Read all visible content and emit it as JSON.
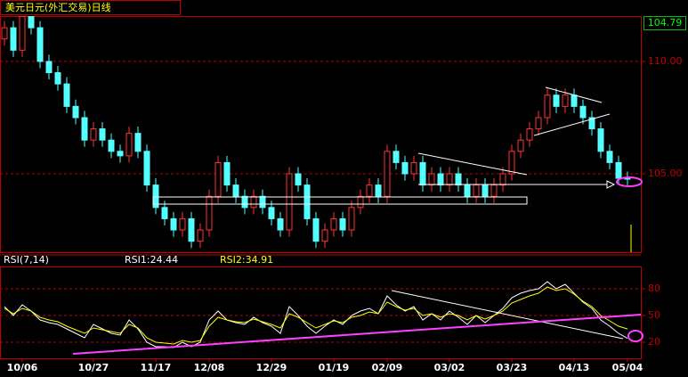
{
  "chart_data": [
    {
      "type": "candlestick",
      "title": "美元日元(外汇交易)日线",
      "categories": [
        null,
        null,
        "10/06",
        null,
        null,
        null,
        null,
        null,
        null,
        null,
        "10/27",
        null,
        null,
        null,
        null,
        null,
        null,
        "11/17",
        null,
        null,
        null,
        null,
        null,
        "12/08",
        null,
        null,
        null,
        null,
        null,
        null,
        "12/29",
        null,
        null,
        null,
        null,
        null,
        null,
        "01/19",
        null,
        null,
        null,
        null,
        null,
        "02/09",
        null,
        null,
        null,
        null,
        null,
        null,
        "03/02",
        null,
        null,
        null,
        null,
        null,
        null,
        "03/23",
        null,
        null,
        null,
        null,
        null,
        null,
        "04/13",
        null,
        null,
        null,
        null,
        null,
        "05/04"
      ],
      "open": [
        111,
        111.5,
        110.5,
        112,
        111.5,
        110,
        109.5,
        109,
        108,
        107.5,
        106.5,
        107,
        106.5,
        106,
        105.8,
        106.8,
        106,
        104.5,
        103.5,
        103,
        102.5,
        103,
        102,
        102.5,
        104,
        105.5,
        104.5,
        104,
        103.5,
        104,
        103.5,
        103,
        102.5,
        105,
        104.5,
        103,
        102,
        102.5,
        103,
        102.5,
        103.5,
        104,
        104.5,
        104,
        106,
        105.5,
        105,
        105.5,
        104.5,
        105,
        104.5,
        105,
        104.5,
        104,
        104.5,
        104,
        104.5,
        105,
        106,
        106.5,
        107,
        107.5,
        108.5,
        108,
        108.5,
        108,
        107.5,
        107,
        106,
        105.5,
        104.8
      ],
      "high": [
        111.8,
        111.8,
        112,
        112,
        111.8,
        110.3,
        109.8,
        109.3,
        108.3,
        107.8,
        107.3,
        107.3,
        106.8,
        106.3,
        107.1,
        107.1,
        106.3,
        104.8,
        103.8,
        103.3,
        103.3,
        103.3,
        102.8,
        104.3,
        105.8,
        105.8,
        104.8,
        104.3,
        104.3,
        104.3,
        103.8,
        103.3,
        105.3,
        105.3,
        104.8,
        103.3,
        102.8,
        103.3,
        103.3,
        103.8,
        104.3,
        104.8,
        104.8,
        106.3,
        106.3,
        105.8,
        105.8,
        105.8,
        105.3,
        105.3,
        105.3,
        105.3,
        104.8,
        104.8,
        104.8,
        104.8,
        105.3,
        106.3,
        106.8,
        107.3,
        107.8,
        108.8,
        108.8,
        108.8,
        108.8,
        108.3,
        107.8,
        107.3,
        106.3,
        105.8,
        105.1
      ],
      "low": [
        110.7,
        110.2,
        110.2,
        111.2,
        109.7,
        109.2,
        108.7,
        107.7,
        107.2,
        106.2,
        106.2,
        106.2,
        105.7,
        105.5,
        105.5,
        105.7,
        104.2,
        103.2,
        102.7,
        102.2,
        102.2,
        101.7,
        101.7,
        102.2,
        103.7,
        104.2,
        103.7,
        103.2,
        103.2,
        103.2,
        102.7,
        102.2,
        102.2,
        104.2,
        102.7,
        101.7,
        101.7,
        102.2,
        102.2,
        102.2,
        103.2,
        103.7,
        103.7,
        103.7,
        105.2,
        104.7,
        104.7,
        104.2,
        104.2,
        104.2,
        104.2,
        104.2,
        103.7,
        103.7,
        103.7,
        103.7,
        104.2,
        104.7,
        105.7,
        106.2,
        106.7,
        107.2,
        107.7,
        107.7,
        107.7,
        107.2,
        106.7,
        105.7,
        105.2,
        104.5,
        104.49
      ],
      "close": [
        111.5,
        110.5,
        112,
        111.5,
        110,
        109.5,
        109,
        108,
        107.5,
        106.5,
        107,
        106.5,
        106,
        105.8,
        106.8,
        106,
        104.5,
        103.5,
        103,
        102.5,
        103,
        102,
        102.5,
        104,
        105.5,
        104.5,
        104,
        103.5,
        104,
        103.5,
        103,
        102.5,
        105,
        104.5,
        103,
        102,
        102.5,
        103,
        102.5,
        103.5,
        104,
        104.5,
        104,
        106,
        105.5,
        105,
        105.5,
        104.5,
        105,
        104.5,
        105,
        104.5,
        104,
        104.5,
        104,
        104.5,
        105,
        106,
        106.5,
        107,
        107.5,
        108.5,
        108,
        108.5,
        108,
        107.5,
        107,
        106,
        105.5,
        104.8,
        104.79
      ],
      "up_color": "#ff3232",
      "down_color": "#54ffff",
      "ylim": [
        101.51,
        112.02
      ],
      "yticks": [
        {
          "value": 105,
          "label": "105.00"
        },
        {
          "value": 110,
          "label": "110.00"
        }
      ],
      "last_price": 104.79,
      "grid": true
    },
    {
      "type": "line",
      "title": "RSI(7,14)",
      "series": [
        {
          "name": "RSI1:24.44",
          "color": "#ffffff",
          "values": [
            60,
            50,
            62,
            55,
            45,
            42,
            40,
            35,
            30,
            25,
            40,
            35,
            30,
            28,
            45,
            35,
            20,
            15,
            15,
            14,
            20,
            15,
            20,
            45,
            55,
            45,
            42,
            40,
            48,
            42,
            38,
            30,
            60,
            50,
            38,
            30,
            38,
            45,
            40,
            50,
            55,
            58,
            52,
            72,
            62,
            55,
            60,
            45,
            52,
            45,
            55,
            48,
            40,
            50,
            42,
            50,
            58,
            70,
            75,
            78,
            80,
            88,
            80,
            85,
            75,
            65,
            58,
            45,
            38,
            30,
            24.44
          ]
        },
        {
          "name": "RSI2:34.91",
          "color": "#ffff00",
          "values": [
            58,
            52,
            58,
            55,
            48,
            45,
            43,
            38,
            34,
            30,
            36,
            34,
            32,
            30,
            40,
            36,
            25,
            20,
            19,
            18,
            22,
            20,
            22,
            38,
            48,
            45,
            43,
            42,
            46,
            43,
            40,
            36,
            52,
            48,
            42,
            36,
            40,
            44,
            42,
            48,
            50,
            54,
            52,
            65,
            60,
            56,
            58,
            50,
            52,
            48,
            52,
            50,
            45,
            50,
            46,
            50,
            55,
            64,
            68,
            72,
            75,
            82,
            78,
            80,
            74,
            66,
            60,
            50,
            44,
            38,
            34.91
          ]
        }
      ],
      "ylim": [
        2,
        104
      ],
      "yticks": [
        20,
        50,
        80
      ],
      "grid": true
    }
  ]
}
